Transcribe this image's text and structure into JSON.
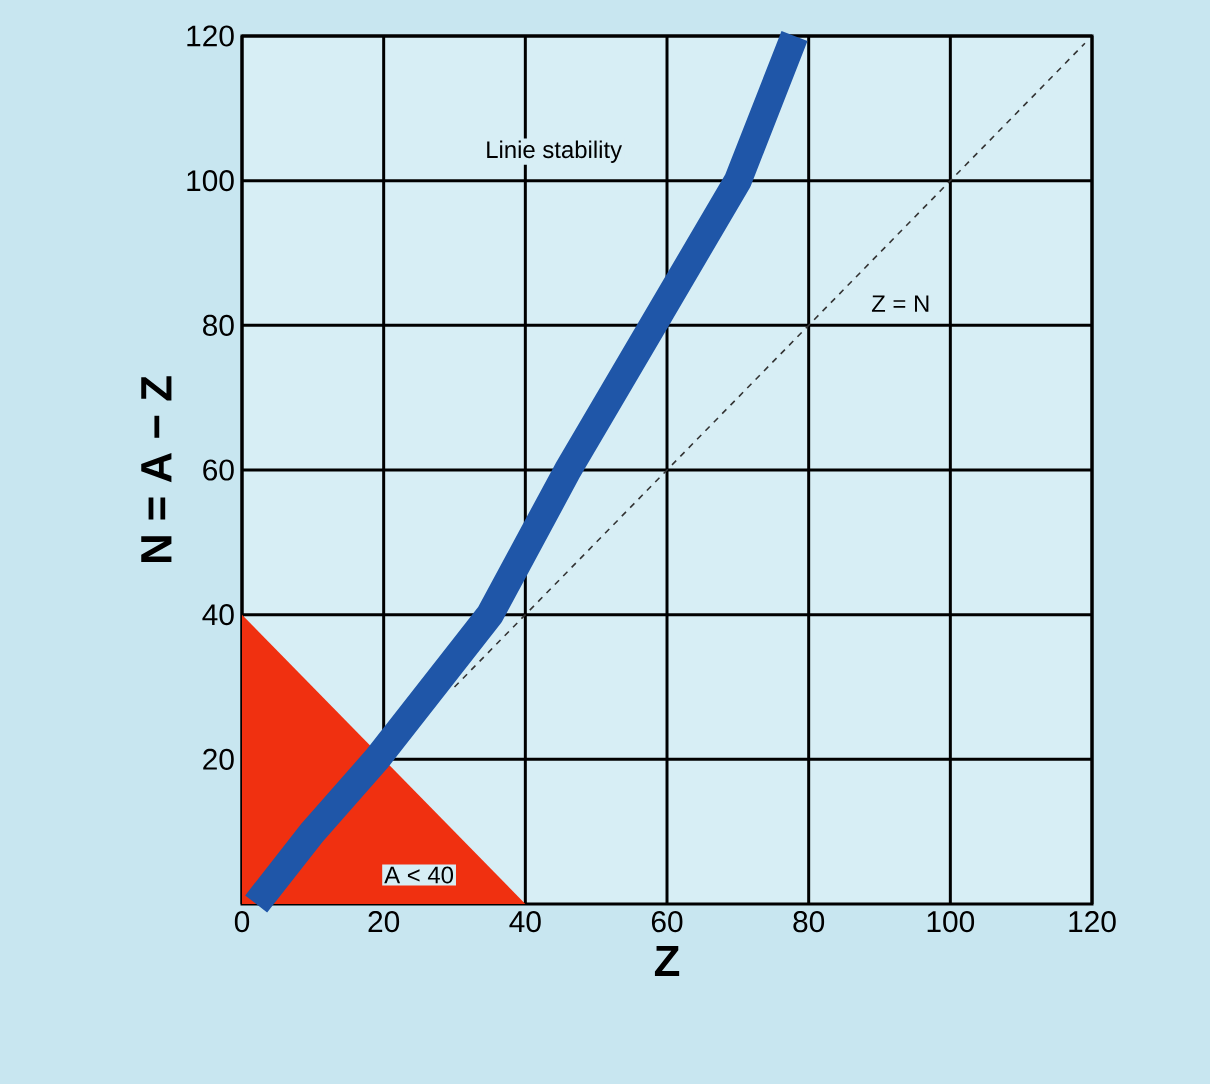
{
  "chart_data": {
    "type": "line",
    "xlabel": "Z",
    "ylabel": "N = A − Z",
    "xlim": [
      0,
      120
    ],
    "ylim": [
      0,
      120
    ],
    "xticks": [
      0,
      20,
      40,
      60,
      80,
      100,
      120
    ],
    "yticks": [
      20,
      40,
      60,
      80,
      100,
      120
    ],
    "grid": true,
    "series": [
      {
        "type": "area",
        "color": "#f03010",
        "x": [
          0,
          40
        ],
        "values": [
          40,
          0
        ]
      },
      {
        "color": "#1f56a8",
        "x": [
          2,
          10,
          19,
          35,
          46,
          58,
          70,
          78
        ],
        "values": [
          0,
          10,
          20,
          40,
          60,
          80,
          100,
          120
        ]
      },
      {
        "color": "#333333",
        "line_style": "dashed",
        "x": [
          30,
          119
        ],
        "values": [
          30,
          119
        ]
      }
    ],
    "annotations": [
      "Linie stability",
      "Z = N",
      "A < 40"
    ]
  }
}
